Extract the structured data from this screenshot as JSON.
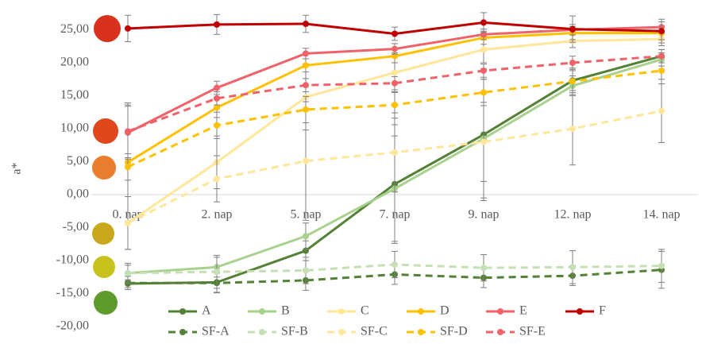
{
  "chart_data": {
    "type": "line",
    "y_label": "a*",
    "categories": [
      "0. nap",
      "2. nap",
      "5. nap",
      "7. nap",
      "9. nap",
      "12. nap",
      "14. nap"
    ],
    "ylim": [
      -20,
      28
    ],
    "yticks": [
      {
        "value": -20,
        "label": "-20,00"
      },
      {
        "value": -15,
        "label": "-15,00"
      },
      {
        "value": -10,
        "label": "-10,00"
      },
      {
        "value": -5,
        "label": "-5,00"
      },
      {
        "value": 0,
        "label": "0,00"
      },
      {
        "value": 5,
        "label": "5,00"
      },
      {
        "value": 10,
        "label": "10,00"
      },
      {
        "value": 15,
        "label": "15,00"
      },
      {
        "value": 20,
        "label": "20,00"
      },
      {
        "value": 25,
        "label": "25,00"
      }
    ],
    "grid": false,
    "legend": "bottom",
    "series": [
      {
        "name": "A",
        "color": "#538135",
        "dashed": false,
        "values": [
          -13.5,
          -13.3,
          -8.5,
          1.6,
          9.1,
          17.3,
          21.0
        ],
        "errors": [
          0.6,
          1.5,
          1.5,
          9,
          10,
          1.5,
          1
        ]
      },
      {
        "name": "B",
        "color": "#a9d18e",
        "dashed": false,
        "values": [
          -11.9,
          -11.0,
          -6.3,
          0.9,
          8.5,
          16.5,
          20.5
        ],
        "errors": [
          1.2,
          1.5,
          2,
          8,
          9,
          1.5,
          1
        ]
      },
      {
        "name": "C",
        "color": "#ffe699",
        "dashed": false,
        "values": [
          -4.3,
          4.9,
          14.8,
          18.5,
          22.0,
          23.3,
          23.6
        ],
        "errors": [
          4,
          4,
          5,
          3,
          2,
          1,
          1
        ]
      },
      {
        "name": "D",
        "color": "#ffc000",
        "dashed": false,
        "values": [
          4.9,
          13.2,
          19.6,
          21.0,
          23.8,
          24.5,
          24.5
        ],
        "errors": [
          9,
          1.5,
          1,
          1,
          1,
          1,
          1
        ]
      },
      {
        "name": "E",
        "color": "#f0626a",
        "dashed": false,
        "values": [
          9.4,
          16.2,
          21.4,
          22.1,
          24.3,
          25.0,
          25.4
        ],
        "errors": [
          4,
          1,
          0.8,
          0.8,
          0.8,
          0.8,
          0.8
        ]
      },
      {
        "name": "F",
        "color": "#c00000",
        "dashed": false,
        "values": [
          25.2,
          25.8,
          25.9,
          24.4,
          26.1,
          25.1,
          24.8
        ],
        "errors": [
          2,
          1.5,
          1.3,
          1,
          1.5,
          2,
          1.8
        ]
      },
      {
        "name": "SF-A",
        "color": "#538135",
        "dashed": true,
        "values": [
          -13.4,
          -13.4,
          -13.0,
          -12.1,
          -12.6,
          -12.3,
          -11.4
        ],
        "errors": [
          1,
          1.5,
          1.5,
          1.5,
          1.5,
          1.5,
          2.8
        ]
      },
      {
        "name": "SF-B",
        "color": "#c5e0b4",
        "dashed": true,
        "values": [
          -11.9,
          -11.7,
          -11.5,
          -10.6,
          -11.1,
          -11.0,
          -10.8
        ],
        "errors": [
          1.5,
          2.5,
          2,
          2,
          2,
          2.5,
          2.5
        ]
      },
      {
        "name": "SF-C",
        "color": "#ffe699",
        "dashed": true,
        "values": [
          -4.3,
          2.4,
          5.1,
          6.4,
          8.0,
          10.0,
          12.7
        ],
        "errors": [
          4,
          3.5,
          9,
          6,
          6,
          5.5,
          4.8
        ]
      },
      {
        "name": "SF-D",
        "color": "#ffc000",
        "dashed": true,
        "values": [
          4.2,
          10.5,
          12.9,
          13.6,
          15.5,
          17.2,
          18.8
        ],
        "errors": [
          2,
          2,
          2,
          2,
          2,
          2,
          2
        ]
      },
      {
        "name": "SF-E",
        "color": "#f0626a",
        "dashed": true,
        "values": [
          9.6,
          14.6,
          16.6,
          16.9,
          18.8,
          20.0,
          21.0
        ],
        "errors": [
          4,
          1,
          1,
          1,
          1,
          1,
          1
        ]
      }
    ]
  }
}
